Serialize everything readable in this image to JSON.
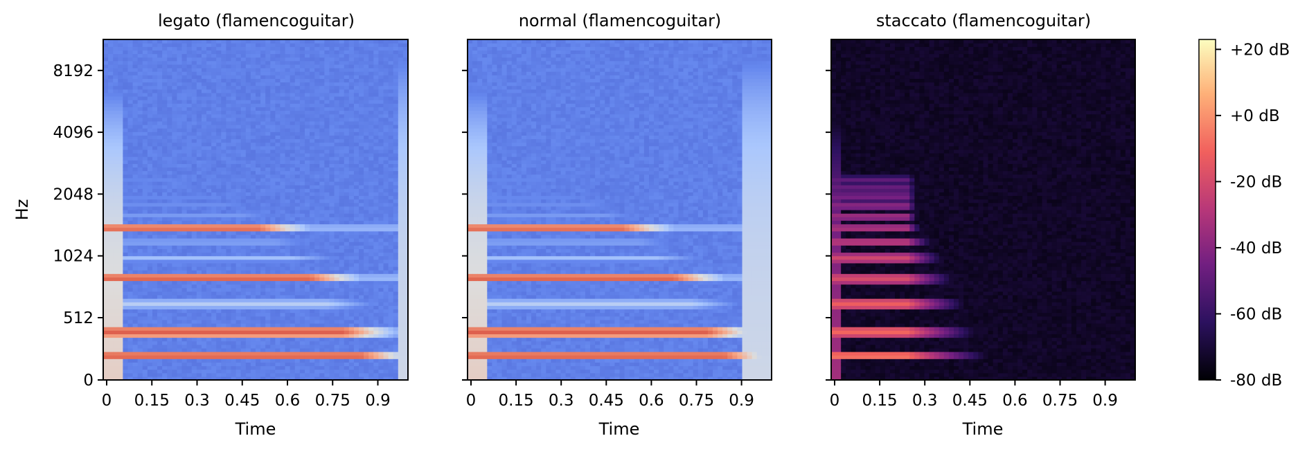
{
  "chart_data": [
    {
      "type": "heatmap",
      "title": "legato (flamencoguitar)",
      "xlabel": "Time",
      "ylabel": "Hz",
      "xticks": [
        "0",
        "0.15",
        "0.3",
        "0.45",
        "0.6",
        "0.75",
        "0.9"
      ],
      "yticks": [
        "0",
        "512",
        "1024",
        "2048",
        "4096",
        "8192"
      ],
      "colormap": "coolwarm",
      "xlim": [
        0,
        1.0
      ],
      "y_scale": "log2",
      "harmonics_hz": [
        200,
        400,
        600,
        800,
        1000,
        1200,
        1400,
        1600,
        1800,
        2000,
        2200,
        2400,
        2600,
        2800,
        3000,
        3200
      ],
      "strong_bands_hz": [
        200,
        400,
        800,
        1400
      ]
    },
    {
      "type": "heatmap",
      "title": "normal (flamencoguitar)",
      "xlabel": "Time",
      "ylabel": "",
      "xticks": [
        "0",
        "0.15",
        "0.3",
        "0.45",
        "0.6",
        "0.75",
        "0.9"
      ],
      "yticks": [
        "0",
        "512",
        "1024",
        "2048",
        "4096",
        "8192"
      ],
      "colormap": "coolwarm",
      "xlim": [
        0,
        1.0
      ],
      "y_scale": "log2",
      "harmonics_hz": [
        200,
        400,
        600,
        800,
        1000,
        1200,
        1400,
        1600,
        1800,
        2000,
        2200,
        2400,
        2600,
        2800,
        3000,
        3200
      ],
      "strong_bands_hz": [
        200,
        400,
        800,
        1400
      ]
    },
    {
      "type": "heatmap",
      "title": "staccato (flamencoguitar)",
      "xlabel": "Time",
      "ylabel": "",
      "xticks": [
        "0",
        "0.15",
        "0.3",
        "0.45",
        "0.6",
        "0.75",
        "0.9"
      ],
      "yticks": [
        "0",
        "512",
        "1024",
        "2048",
        "4096",
        "8192"
      ],
      "colormap": "magma",
      "xlim": [
        0,
        1.0
      ],
      "y_scale": "log2",
      "harmonics_hz": [
        200,
        400,
        600,
        800,
        1000,
        1200,
        1400,
        1600,
        1800,
        2000,
        2200,
        2400
      ],
      "note_end_s": 0.25
    }
  ],
  "colorbar": {
    "ticks": [
      "+20 dB",
      "+0 dB",
      "-20 dB",
      "-40 dB",
      "-60 dB",
      "-80 dB"
    ],
    "values": [
      20,
      0,
      -20,
      -40,
      -60,
      -80
    ],
    "range_db": [
      -80,
      23
    ]
  },
  "colors": {
    "coolwarm": [
      "#3b4cc0",
      "#6688ee",
      "#aac7fd",
      "#dddddd",
      "#f7a889",
      "#e26952",
      "#b40426"
    ],
    "magma": [
      "#000004",
      "#2c115f",
      "#721f81",
      "#b73779",
      "#f1605d",
      "#feb078",
      "#fcfdbf"
    ]
  }
}
